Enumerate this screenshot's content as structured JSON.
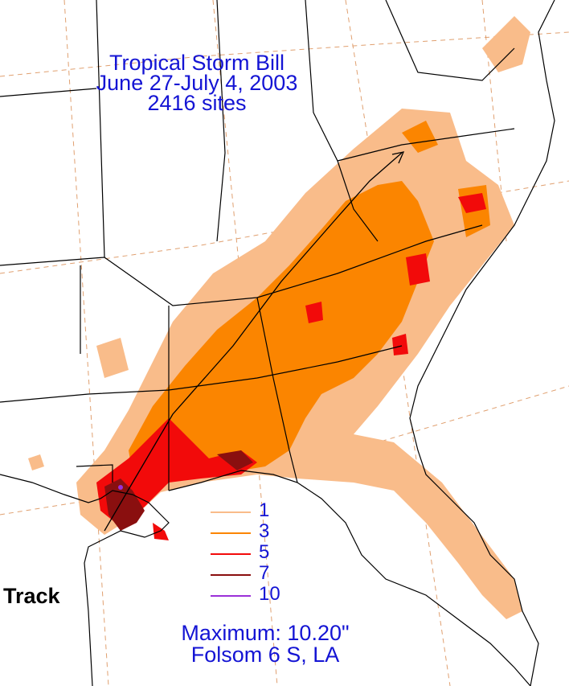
{
  "title": {
    "line1": "Tropical Storm Bill",
    "line2": "June 27-July 4, 2003",
    "line3": "2416 sites"
  },
  "legend": {
    "items": [
      {
        "label": "1",
        "color": "#f9bc8a"
      },
      {
        "label": "3",
        "color": "#fb8500"
      },
      {
        "label": "5",
        "color": "#f20a0a"
      },
      {
        "label": "7",
        "color": "#8a0f0f"
      },
      {
        "label": "10",
        "color": "#9b30d8"
      }
    ]
  },
  "track_label": "Track",
  "maximum": {
    "value_text": "Maximum: 10.20\"",
    "location": "Folsom 6 S, LA"
  },
  "colors": {
    "text": "#1414d4",
    "state_lines": "#000000",
    "grid_lines": "#e0a070"
  }
}
